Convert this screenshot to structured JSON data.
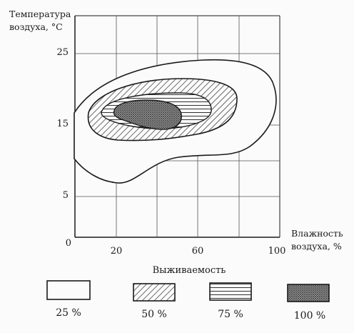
{
  "chart_data": {
    "type": "contour",
    "ylabel_line1": "Температура",
    "ylabel_line2": "воздуха, °С",
    "xlabel_line1": "Влажность",
    "xlabel_line2": "воздуха, %",
    "y_ticks": [
      "25",
      "15",
      "5"
    ],
    "x_ticks": [
      "20",
      "60",
      "100"
    ],
    "origin_label": "0",
    "xlim": [
      0,
      100
    ],
    "ylim": [
      0,
      29
    ],
    "zones": [
      {
        "name": "25 %",
        "fill": "blank"
      },
      {
        "name": "50 %",
        "fill": "diagonal-hatch"
      },
      {
        "name": "75 %",
        "fill": "horizontal-lines"
      },
      {
        "name": "100 %",
        "fill": "dotted"
      }
    ]
  },
  "legend": {
    "title": "Выживаемость",
    "items": [
      {
        "label": "25 %",
        "pattern": "blank"
      },
      {
        "label": "50 %",
        "pattern": "diagonal-hatch"
      },
      {
        "label": "75 %",
        "pattern": "horizontal-lines"
      },
      {
        "label": "100 %",
        "pattern": "dotted"
      }
    ]
  },
  "colors": {
    "line": "#1a1a1a",
    "grid": "#555555",
    "background": "#fbfbfb"
  }
}
